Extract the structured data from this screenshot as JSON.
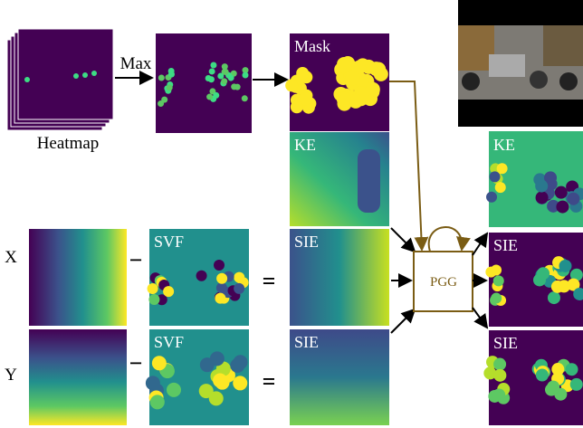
{
  "heatmap": {
    "label": "Heatmap",
    "operator": "Max"
  },
  "mask": {
    "label": "Mask"
  },
  "key_embedding": {
    "label": "KE"
  },
  "x_row": {
    "label": "X",
    "minus": "−",
    "svf": "SVF",
    "equals": "=",
    "sie": "SIE"
  },
  "y_row": {
    "label": "Y",
    "minus": "−",
    "svf": "SVF",
    "equals": "=",
    "sie": "SIE"
  },
  "pgg": {
    "label": "PGG"
  },
  "outputs": [
    "KE",
    "SIE",
    "SIE"
  ]
}
